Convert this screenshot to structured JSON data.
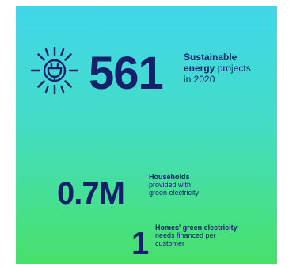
{
  "stats": [
    {
      "value": "561",
      "line1_bold": "Sustainable",
      "line2_bold": "energy",
      "line2_rest": " projects",
      "line3": "in 2020"
    },
    {
      "value": "0.7M",
      "line1_bold": "Households",
      "line2": "provided with",
      "line3": "green electricity"
    },
    {
      "value": "1",
      "line1_bold": "Homes' green electricity",
      "line2": "needs financed per",
      "line3": "customer"
    }
  ],
  "icon": "sun-plug-icon",
  "colors": {
    "text": "#15206b",
    "gradient_top": "#40d6ea",
    "gradient_bottom": "#48e06a"
  }
}
